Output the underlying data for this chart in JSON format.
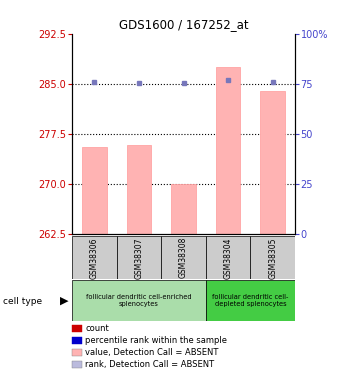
{
  "title": "GDS1600 / 167252_at",
  "samples": [
    "GSM38306",
    "GSM38307",
    "GSM38308",
    "GSM38304",
    "GSM38305"
  ],
  "bar_values": [
    275.5,
    275.8,
    270.0,
    287.5,
    284.0
  ],
  "bar_bottom": 262.5,
  "rank_dots_y": [
    285.3,
    285.2,
    285.1,
    285.6,
    285.3
  ],
  "ylim_left": [
    262.5,
    292.5
  ],
  "ylim_right": [
    0,
    100
  ],
  "yticks_left": [
    262.5,
    270,
    277.5,
    285,
    292.5
  ],
  "yticks_right": [
    0,
    25,
    50,
    75,
    100
  ],
  "hlines": [
    270,
    277.5,
    285
  ],
  "bar_color": "#FFB3B3",
  "dot_color_rank": "#7777BB",
  "bar_edge_color": "#FF9999",
  "tick_color_left": "#CC0000",
  "tick_color_right": "#4444CC",
  "background_color": "#FFFFFF",
  "sample_box_color": "#CCCCCC",
  "cell_type_1_color": "#AADDAA",
  "cell_type_2_color": "#44CC44",
  "cell_type_1_label": "follicular dendritic cell-enriched\nsplenocytes",
  "cell_type_2_label": "follicular dendritic cell-\ndepleted splenocytes",
  "legend_items": [
    {
      "color": "#CC0000",
      "label": "count"
    },
    {
      "color": "#0000CC",
      "label": "percentile rank within the sample"
    },
    {
      "color": "#FFB3B3",
      "label": "value, Detection Call = ABSENT"
    },
    {
      "color": "#BBBBDD",
      "label": "rank, Detection Call = ABSENT"
    }
  ]
}
